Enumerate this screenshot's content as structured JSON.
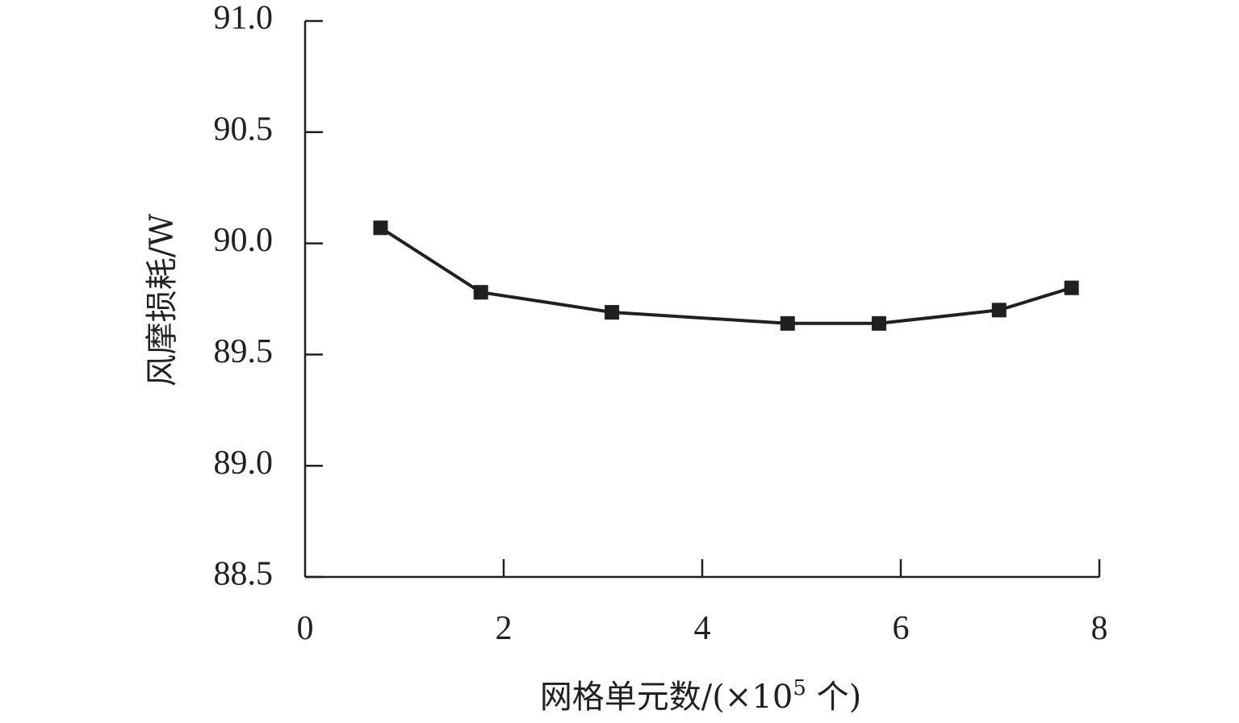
{
  "chart_data": {
    "type": "line",
    "title": "",
    "xlabel": "网格单元数/(×10",
    "xlabel_sup": "5",
    "xlabel_tail": " 个)",
    "ylabel": "风摩损耗/W",
    "xlim": [
      0,
      8
    ],
    "ylim": [
      88.5,
      91.0
    ],
    "xticks": [
      "0",
      "2",
      "4",
      "6",
      "8"
    ],
    "yticks": [
      "88.5",
      "89.0",
      "89.5",
      "90.0",
      "90.5",
      "91.0"
    ],
    "grid": false,
    "legend": "none",
    "marker": "square",
    "line_color": "#231f20",
    "series": [
      {
        "x": [
          0.76,
          1.77,
          3.09,
          4.86,
          5.78,
          6.99,
          7.72
        ],
        "y": [
          90.07,
          89.78,
          89.69,
          89.64,
          89.64,
          89.7,
          89.8
        ]
      }
    ]
  }
}
